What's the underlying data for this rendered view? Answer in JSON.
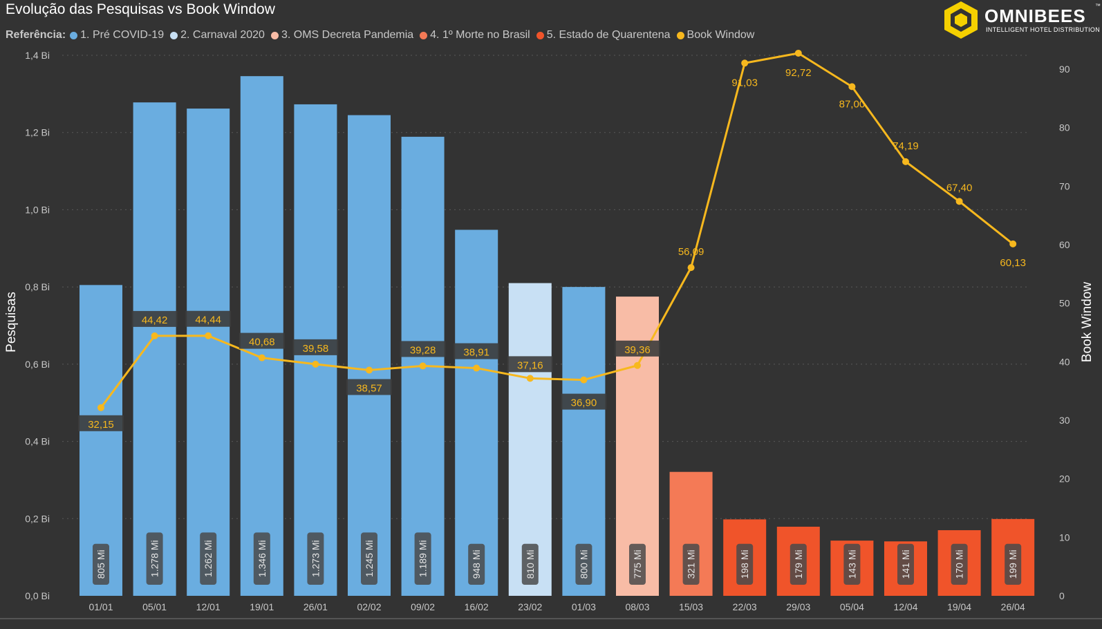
{
  "chart_data": {
    "type": "bar",
    "title": "Evolução das Pesquisas vs Book Window",
    "ylabel": "Pesquisas",
    "y2label": "Book Window",
    "ylim": [
      0,
      1.4
    ],
    "y2lim": [
      0,
      95
    ],
    "y_ticks": [
      "0,0 Bi",
      "0,2 Bi",
      "0,4 Bi",
      "0,6 Bi",
      "0,8 Bi",
      "1,0 Bi",
      "1,2 Bi",
      "1,4 Bi"
    ],
    "y2_ticks": [
      "0",
      "10",
      "20",
      "30",
      "40",
      "50",
      "60",
      "70",
      "80",
      "90"
    ],
    "grid": true,
    "legend": {
      "title": "Referência:",
      "placement": "top-left",
      "items": [
        {
          "label": "1. Pré COVID-19",
          "color": "#6aade0"
        },
        {
          "label": "2. Carnaval 2020",
          "color": "#c8e0f4"
        },
        {
          "label": "3. OMS Decreta Pandemia",
          "color": "#f8bca6"
        },
        {
          "label": "4. 1º Morte no Brasil",
          "color": "#f47a56"
        },
        {
          "label": "5. Estado de Quarentena",
          "color": "#f0542a"
        },
        {
          "label": "Book Window",
          "color": "#f7b81e"
        }
      ]
    },
    "categories": [
      "01/01",
      "05/01",
      "12/01",
      "19/01",
      "26/01",
      "02/02",
      "09/02",
      "16/02",
      "23/02",
      "01/03",
      "08/03",
      "15/03",
      "22/03",
      "29/03",
      "05/04",
      "12/04",
      "19/04",
      "26/04"
    ],
    "bars": {
      "name": "Pesquisas",
      "values": [
        0.805,
        1.278,
        1.262,
        1.346,
        1.273,
        1.245,
        1.189,
        0.948,
        0.81,
        0.8,
        0.775,
        0.321,
        0.198,
        0.179,
        0.143,
        0.141,
        0.17,
        0.199
      ],
      "labels": [
        "805 Mi",
        "1.278 Mi",
        "1.262 Mi",
        "1.346 Mi",
        "1.273 Mi",
        "1.245 Mi",
        "1.189 Mi",
        "948 Mi",
        "810 Mi",
        "800 Mi",
        "775 Mi",
        "321 Mi",
        "198 Mi",
        "179 Mi",
        "143 Mi",
        "141 Mi",
        "170 Mi",
        "199 Mi"
      ],
      "groups": [
        1,
        1,
        1,
        1,
        1,
        1,
        1,
        1,
        2,
        1,
        3,
        4,
        5,
        5,
        5,
        5,
        5,
        5
      ]
    },
    "line": {
      "name": "Book Window",
      "color": "#f7b81e",
      "values": [
        32.15,
        44.42,
        44.44,
        40.68,
        39.58,
        38.57,
        39.28,
        38.91,
        37.16,
        36.9,
        39.36,
        56.09,
        91.03,
        92.72,
        87.0,
        74.19,
        67.4,
        60.13
      ],
      "labels": [
        "32,15",
        "44,42",
        "44,44",
        "40,68",
        "39,58",
        "38,57",
        "39,28",
        "38,91",
        "37,16",
        "36,90",
        "39,36",
        "56,09",
        "91,03",
        "92,72",
        "87,00",
        "74,19",
        "67,40",
        "60,13"
      ]
    }
  },
  "logo": {
    "brand": "OMNIBEES",
    "tagline": "INTELLIGENT HOTEL DISTRIBUTION",
    "trademark": "™"
  }
}
